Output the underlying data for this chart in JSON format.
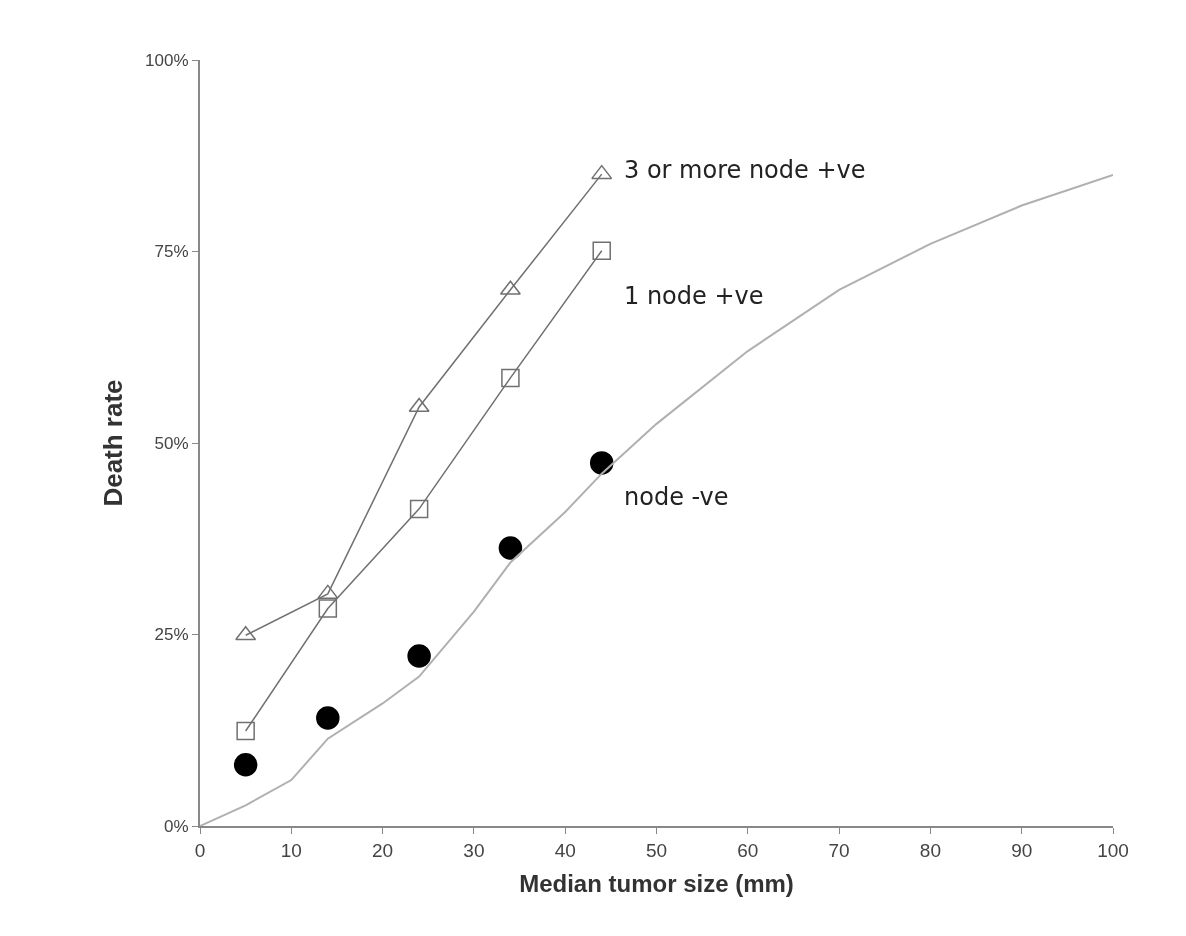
{
  "chart_data": {
    "type": "line",
    "xlabel": "Median tumor size (mm)",
    "ylabel": "Death rate",
    "x": [
      5,
      14,
      24,
      34,
      44
    ],
    "series": [
      {
        "name": "3 or more node +ve",
        "color": "#707070",
        "marker": "triangle",
        "values": [
          24.9,
          30.3,
          54.7,
          70,
          85.1
        ]
      },
      {
        "name": "1 node +ve",
        "color": "#707070",
        "marker": "square",
        "values": [
          12.4,
          28.4,
          41.4,
          58.5,
          75.1
        ]
      },
      {
        "name": "node -ve",
        "type": "scatter",
        "color": "#000000",
        "marker": "circle",
        "values": [
          8.0,
          14.1,
          22.2,
          36.3,
          47.4
        ]
      },
      {
        "type": "line",
        "color": "#b0b0b0",
        "marker": "none",
        "x": [
          0,
          5,
          10,
          14,
          20,
          24,
          30,
          34,
          40,
          44,
          50,
          60,
          70,
          80,
          90,
          100
        ],
        "values": [
          0,
          2.7,
          6,
          11.4,
          16,
          19.5,
          28,
          34.4,
          41,
          46,
          52.5,
          62,
          70,
          76,
          81,
          85
        ]
      }
    ],
    "xlim": [
      0,
      100
    ],
    "xticks": [
      0,
      10,
      20,
      30,
      40,
      50,
      60,
      70,
      80,
      90,
      100
    ],
    "ylim": [
      0,
      100
    ],
    "yticks": [
      {
        "value": 0,
        "label": "0%"
      },
      {
        "value": 25,
        "label": "25%"
      },
      {
        "value": 50,
        "label": "50%"
      },
      {
        "value": 75,
        "label": "75%"
      },
      {
        "value": 100,
        "label": "100%"
      }
    ],
    "legend": false
  }
}
